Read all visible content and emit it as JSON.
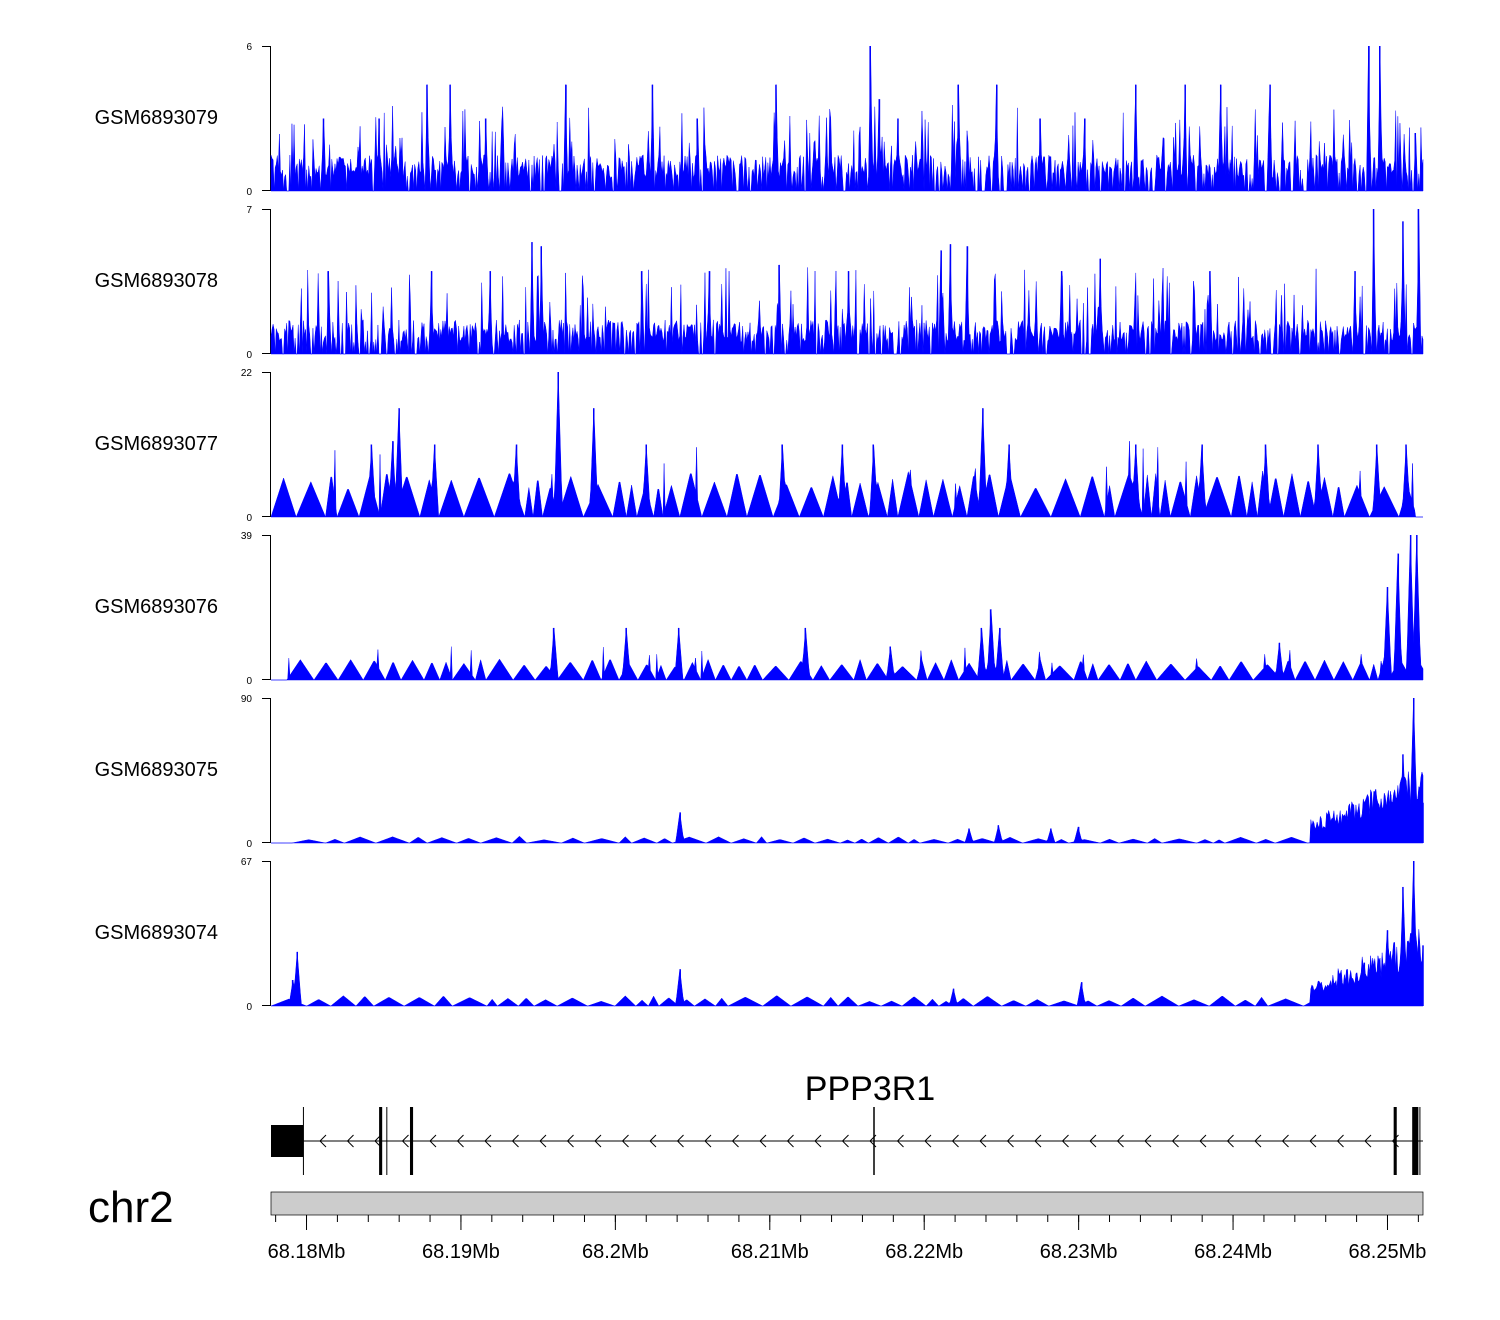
{
  "chart_data": {
    "type": "area",
    "x_unit": "Mb",
    "x_range": [
      68.1777,
      68.2523
    ],
    "fill_color": "#0000ff",
    "tracks": [
      {
        "name": "GSM6893079",
        "ymax": 6,
        "ymin": 0,
        "peaks": [
          [
            68.1811,
            3.0
          ],
          [
            68.1847,
            3.0
          ],
          [
            68.1878,
            4.4
          ],
          [
            68.1893,
            4.4
          ],
          [
            68.1916,
            3.0
          ],
          [
            68.1968,
            4.4
          ],
          [
            68.2024,
            4.4
          ],
          [
            68.2053,
            3.0
          ],
          [
            68.2104,
            4.4
          ],
          [
            68.2165,
            6.0
          ],
          [
            68.2171,
            3.8
          ],
          [
            68.2183,
            3.0
          ],
          [
            68.2222,
            4.4
          ],
          [
            68.2247,
            4.4
          ],
          [
            68.2275,
            3.0
          ],
          [
            68.2304,
            3.0
          ],
          [
            68.2337,
            4.4
          ],
          [
            68.2369,
            4.4
          ],
          [
            68.2392,
            4.4
          ],
          [
            68.2424,
            4.4
          ],
          [
            68.2488,
            6.0
          ],
          [
            68.2495,
            6.0
          ],
          [
            68.2518,
            2.4
          ]
        ],
        "base_noise": 1.0
      },
      {
        "name": "GSM6893078",
        "ymax": 7,
        "ymin": 0,
        "peaks": [
          [
            68.1814,
            4.0
          ],
          [
            68.1881,
            4.0
          ],
          [
            68.1919,
            4.0
          ],
          [
            68.1946,
            5.4
          ],
          [
            68.1952,
            4.7
          ],
          [
            68.1952,
            5.2
          ],
          [
            68.2017,
            4.0
          ],
          [
            68.2061,
            4.0
          ],
          [
            68.2106,
            4.3
          ],
          [
            68.2151,
            4.0
          ],
          [
            68.2217,
            5.3
          ],
          [
            68.2211,
            5.0
          ],
          [
            68.2228,
            5.2
          ],
          [
            68.2289,
            4.0
          ],
          [
            68.2314,
            4.6
          ],
          [
            68.2385,
            4.0
          ],
          [
            68.2479,
            4.0
          ],
          [
            68.2491,
            7.0
          ],
          [
            68.251,
            6.4
          ],
          [
            68.252,
            7.0
          ]
        ],
        "base_noise": 1.1
      },
      {
        "name": "GSM6893077",
        "ymax": 22,
        "ymin": 0,
        "peaks": [
          [
            68.1842,
            11.0
          ],
          [
            68.186,
            16.5
          ],
          [
            68.1856,
            11.5
          ],
          [
            68.1883,
            11.0
          ],
          [
            68.1936,
            11.0
          ],
          [
            68.1963,
            22.0
          ],
          [
            68.1986,
            16.5
          ],
          [
            68.202,
            11.0
          ],
          [
            68.2108,
            11.0
          ],
          [
            68.2147,
            11.0
          ],
          [
            68.2167,
            11.0
          ],
          [
            68.2238,
            16.5
          ],
          [
            68.2255,
            11.0
          ],
          [
            68.2337,
            11.0
          ],
          [
            68.238,
            11.0
          ],
          [
            68.2421,
            11.0
          ],
          [
            68.2455,
            11.0
          ],
          [
            68.2493,
            11.0
          ],
          [
            68.2512,
            11.0
          ]
        ],
        "base_noise": 5.5
      },
      {
        "name": "GSM6893076",
        "ymax": 39,
        "ymin": 0,
        "peaks": [
          [
            68.196,
            14.0
          ],
          [
            68.2007,
            14.0
          ],
          [
            68.2041,
            14.0
          ],
          [
            68.2123,
            14.0
          ],
          [
            68.2178,
            9.0
          ],
          [
            68.2237,
            14.0
          ],
          [
            68.2243,
            19.0
          ],
          [
            68.2249,
            14.0
          ],
          [
            68.243,
            10.0
          ],
          [
            68.2515,
            39.0
          ],
          [
            68.2519,
            39.0
          ],
          [
            68.2507,
            34.0
          ],
          [
            68.25,
            25.0
          ]
        ],
        "base_noise": 4.5
      },
      {
        "name": "GSM6893075",
        "ymax": 90,
        "ymin": 0,
        "peaks": [
          [
            68.2042,
            19.0
          ],
          [
            68.2229,
            9.0
          ],
          [
            68.2248,
            11.0
          ],
          [
            68.2282,
            9.0
          ],
          [
            68.23,
            10.0
          ],
          [
            68.2502,
            30.0
          ],
          [
            68.251,
            55.0
          ],
          [
            68.2517,
            90.0
          ],
          [
            68.2523,
            25.0
          ]
        ],
        "base_noise": 3.0
      },
      {
        "name": "GSM6893074",
        "ymax": 67,
        "ymin": 0,
        "peaks": [
          [
            68.1794,
            25.0
          ],
          [
            68.1791,
            12.0
          ],
          [
            68.2042,
            17.0
          ],
          [
            68.2219,
            8.0
          ],
          [
            68.2302,
            11.0
          ],
          [
            68.2485,
            20.0
          ],
          [
            68.25,
            35.0
          ],
          [
            68.251,
            55.0
          ],
          [
            68.2517,
            67.0
          ],
          [
            68.2523,
            28.0
          ]
        ],
        "base_noise": 3.5
      }
    ],
    "gene": {
      "name": "PPP3R1",
      "strand": "-",
      "start": 68.1777,
      "end": 68.2523,
      "exons": [
        {
          "start": 68.1777,
          "end": 68.1798,
          "tall": true
        },
        {
          "start": 68.1847,
          "end": 68.1849,
          "tall": true
        },
        {
          "start": 68.1867,
          "end": 68.1869,
          "tall": true
        },
        {
          "start": 68.2167,
          "end": 68.2168,
          "tall": false
        },
        {
          "start": 68.2504,
          "end": 68.2506,
          "tall": true
        },
        {
          "start": 68.2516,
          "end": 68.252,
          "tall": true
        }
      ]
    },
    "chromosome": "chr2",
    "x_ticks": [
      68.18,
      68.19,
      68.2,
      68.21,
      68.22,
      68.23,
      68.24,
      68.25
    ],
    "x_tick_labels": [
      "68.18Mb",
      "68.19Mb",
      "68.2Mb",
      "68.21Mb",
      "68.22Mb",
      "68.23Mb",
      "68.24Mb",
      "68.25Mb"
    ],
    "minor_tick_step": 0.002
  }
}
